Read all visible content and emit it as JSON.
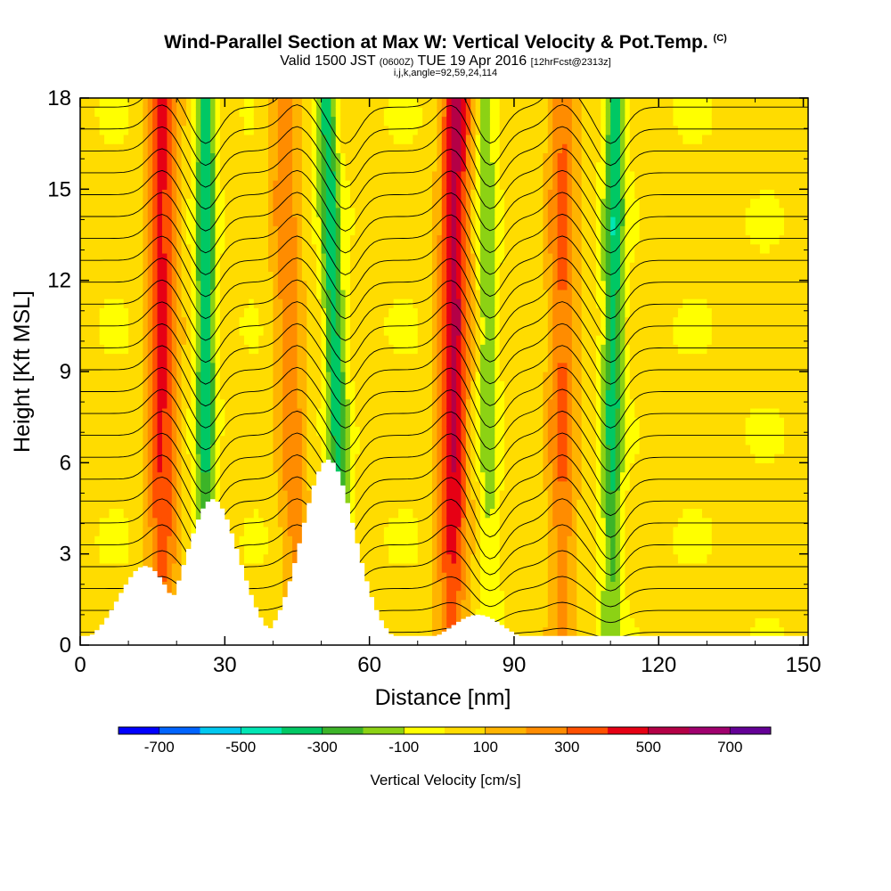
{
  "title": {
    "main": "Wind-Parallel Section at Max W: Vertical Velocity & Pot.Temp.",
    "copyright": "(C)",
    "valid_prefix": "Valid 1500 JST",
    "valid_utc": "(0600Z)",
    "valid_date": "TUE 19 Apr 2016",
    "forecast": "[12hrFcst@2313z]",
    "grid_info": "i,j,k,angle=92,59,24,114"
  },
  "colorbar": {
    "title": "Vertical Velocity [cm/s]",
    "labels": [
      "-700",
      "-500",
      "-300",
      "-100",
      "100",
      "300",
      "500",
      "700"
    ],
    "colors": [
      "#0000ff",
      "#0064ff",
      "#00c8f0",
      "#00e6b4",
      "#00c864",
      "#3cb428",
      "#8cd214",
      "#ffff00",
      "#ffdc00",
      "#ffb400",
      "#ff8c00",
      "#ff5000",
      "#e60014",
      "#b40046",
      "#a0006e",
      "#640096"
    ]
  },
  "chart_data": {
    "type": "heatmap",
    "xlabel": "Distance [nm]",
    "ylabel": "Height [Kft MSL]",
    "xlim": [
      0,
      151
    ],
    "ylim": [
      0,
      18
    ],
    "xticks": [
      0,
      30,
      60,
      90,
      120,
      150
    ],
    "yticks": [
      0,
      3,
      6,
      9,
      12,
      15,
      18
    ],
    "field": "Vertical Velocity [cm/s]",
    "contours": "Potential Temperature",
    "terrain_peaks_kft": [
      {
        "x": 13,
        "height": 2.6
      },
      {
        "x": 27,
        "height": 4.8
      },
      {
        "x": 51,
        "height": 6.1
      },
      {
        "x": 82,
        "height": 1.0
      }
    ],
    "updraft_bands": [
      {
        "x_bottom": 17,
        "x_top": 17,
        "w_max": 400
      },
      {
        "x_bottom": 45,
        "x_top": 42,
        "w_max": 250
      },
      {
        "x_bottom": 77,
        "x_top": 78,
        "w_max": 500
      },
      {
        "x_bottom": 100,
        "x_top": 100,
        "w_max": 300
      }
    ],
    "downdraft_bands": [
      {
        "x_bottom": 26,
        "x_top": 26,
        "w_min": -400
      },
      {
        "x_bottom": 55,
        "x_top": 51,
        "w_min": -400
      },
      {
        "x_bottom": 85,
        "x_top": 84,
        "w_min": -200
      },
      {
        "x_bottom": 110,
        "x_top": 111,
        "w_min": -400
      }
    ]
  }
}
